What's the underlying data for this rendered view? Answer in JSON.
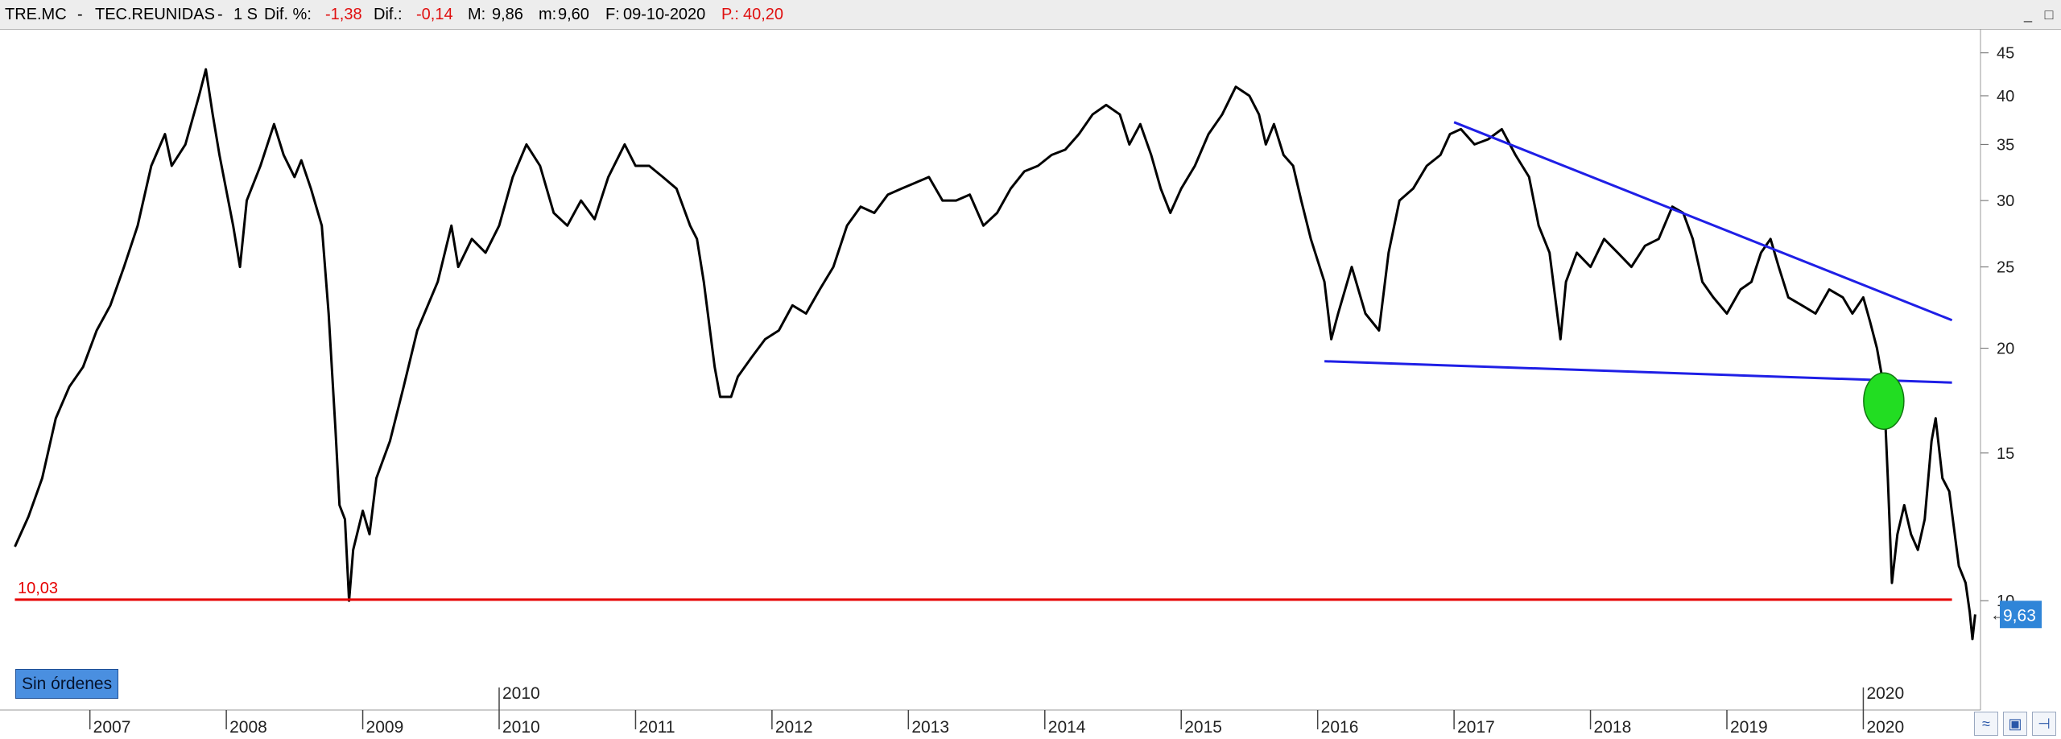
{
  "header": {
    "ticker": "TRE.MC",
    "name": "TEC.REUNIDAS",
    "period": "1 S",
    "dif_pct_label": "Dif. %:",
    "dif_pct": "-1,38",
    "dif_label": "Dif.:",
    "dif": "-0,14",
    "max_label": "M:",
    "max": "9,86",
    "min_label": "m:",
    "min": "9,60",
    "date_label": "F:",
    "date": "09-10-2020",
    "p_label": "P.:",
    "p": "40,20",
    "sep": "-"
  },
  "orders_button": "Sin órdenes",
  "icons": {
    "window": [
      "minimize-icon",
      "restore-icon"
    ],
    "bottom": [
      "zoom-icon",
      "save-icon",
      "pin-icon"
    ]
  },
  "chart_data": {
    "type": "line",
    "y_scale": "log",
    "ylim": [
      8.2,
      47
    ],
    "y_ticks": [
      10,
      15,
      20,
      25,
      30,
      35,
      40,
      45
    ],
    "x_range": [
      2006.4,
      2020.8
    ],
    "x_ticks": [
      "2007",
      "2008",
      "2009",
      "2010",
      "2011",
      "2012",
      "2013",
      "2014",
      "2015",
      "2016",
      "2017",
      "2018",
      "2019",
      "2020"
    ],
    "x_tick_positions": [
      2007,
      2008,
      2009,
      2010,
      2011,
      2012,
      2013,
      2014,
      2015,
      2016,
      2017,
      2018,
      2019,
      2020
    ],
    "upper_year_labels": [
      {
        "text": "2010",
        "x": 2010.0
      },
      {
        "text": "2020",
        "x": 2020.0
      }
    ],
    "grid": false,
    "price_color": "#000000",
    "price_series": [
      [
        2006.45,
        11.6
      ],
      [
        2006.55,
        12.6
      ],
      [
        2006.65,
        14.0
      ],
      [
        2006.75,
        16.5
      ],
      [
        2006.85,
        18.0
      ],
      [
        2006.95,
        19.0
      ],
      [
        2007.05,
        21.0
      ],
      [
        2007.15,
        22.5
      ],
      [
        2007.25,
        25.0
      ],
      [
        2007.35,
        28.0
      ],
      [
        2007.45,
        33.0
      ],
      [
        2007.55,
        36.0
      ],
      [
        2007.6,
        33.0
      ],
      [
        2007.7,
        35.0
      ],
      [
        2007.8,
        40.0
      ],
      [
        2007.85,
        43.0
      ],
      [
        2007.9,
        38.0
      ],
      [
        2007.95,
        34.0
      ],
      [
        2008.05,
        28.0
      ],
      [
        2008.1,
        25.0
      ],
      [
        2008.15,
        30.0
      ],
      [
        2008.25,
        33.0
      ],
      [
        2008.35,
        37.0
      ],
      [
        2008.42,
        34.0
      ],
      [
        2008.5,
        32.0
      ],
      [
        2008.55,
        33.5
      ],
      [
        2008.62,
        31.0
      ],
      [
        2008.7,
        28.0
      ],
      [
        2008.75,
        22.0
      ],
      [
        2008.8,
        16.0
      ],
      [
        2008.83,
        13.0
      ],
      [
        2008.87,
        12.5
      ],
      [
        2008.9,
        10.0
      ],
      [
        2008.93,
        11.5
      ],
      [
        2009.0,
        12.8
      ],
      [
        2009.05,
        12.0
      ],
      [
        2009.1,
        14.0
      ],
      [
        2009.2,
        15.5
      ],
      [
        2009.3,
        18.0
      ],
      [
        2009.4,
        21.0
      ],
      [
        2009.55,
        24.0
      ],
      [
        2009.65,
        28.0
      ],
      [
        2009.7,
        25.0
      ],
      [
        2009.8,
        27.0
      ],
      [
        2009.9,
        26.0
      ],
      [
        2010.0,
        28.0
      ],
      [
        2010.1,
        32.0
      ],
      [
        2010.2,
        35.0
      ],
      [
        2010.3,
        33.0
      ],
      [
        2010.4,
        29.0
      ],
      [
        2010.5,
        28.0
      ],
      [
        2010.6,
        30.0
      ],
      [
        2010.7,
        28.5
      ],
      [
        2010.8,
        32.0
      ],
      [
        2010.92,
        35.0
      ],
      [
        2011.0,
        33.0
      ],
      [
        2011.1,
        33.0
      ],
      [
        2011.2,
        32.0
      ],
      [
        2011.3,
        31.0
      ],
      [
        2011.4,
        28.0
      ],
      [
        2011.45,
        27.0
      ],
      [
        2011.5,
        24.0
      ],
      [
        2011.58,
        19.0
      ],
      [
        2011.62,
        17.5
      ],
      [
        2011.7,
        17.5
      ],
      [
        2011.75,
        18.5
      ],
      [
        2011.85,
        19.5
      ],
      [
        2011.95,
        20.5
      ],
      [
        2012.05,
        21.0
      ],
      [
        2012.15,
        22.5
      ],
      [
        2012.25,
        22.0
      ],
      [
        2012.35,
        23.5
      ],
      [
        2012.45,
        25.0
      ],
      [
        2012.55,
        28.0
      ],
      [
        2012.65,
        29.5
      ],
      [
        2012.75,
        29.0
      ],
      [
        2012.85,
        30.5
      ],
      [
        2012.95,
        31.0
      ],
      [
        2013.05,
        31.5
      ],
      [
        2013.15,
        32.0
      ],
      [
        2013.25,
        30.0
      ],
      [
        2013.35,
        30.0
      ],
      [
        2013.45,
        30.5
      ],
      [
        2013.55,
        28.0
      ],
      [
        2013.65,
        29.0
      ],
      [
        2013.75,
        31.0
      ],
      [
        2013.85,
        32.5
      ],
      [
        2013.95,
        33.0
      ],
      [
        2014.05,
        34.0
      ],
      [
        2014.15,
        34.5
      ],
      [
        2014.25,
        36.0
      ],
      [
        2014.35,
        38.0
      ],
      [
        2014.45,
        39.0
      ],
      [
        2014.55,
        38.0
      ],
      [
        2014.62,
        35.0
      ],
      [
        2014.7,
        37.0
      ],
      [
        2014.78,
        34.0
      ],
      [
        2014.85,
        31.0
      ],
      [
        2014.92,
        29.0
      ],
      [
        2015.0,
        31.0
      ],
      [
        2015.1,
        33.0
      ],
      [
        2015.2,
        36.0
      ],
      [
        2015.3,
        38.0
      ],
      [
        2015.4,
        41.0
      ],
      [
        2015.5,
        40.0
      ],
      [
        2015.57,
        38.0
      ],
      [
        2015.62,
        35.0
      ],
      [
        2015.68,
        37.0
      ],
      [
        2015.75,
        34.0
      ],
      [
        2015.82,
        33.0
      ],
      [
        2015.88,
        30.0
      ],
      [
        2015.95,
        27.0
      ],
      [
        2016.05,
        24.0
      ],
      [
        2016.1,
        20.5
      ],
      [
        2016.15,
        22.0
      ],
      [
        2016.25,
        25.0
      ],
      [
        2016.35,
        22.0
      ],
      [
        2016.45,
        21.0
      ],
      [
        2016.52,
        26.0
      ],
      [
        2016.6,
        30.0
      ],
      [
        2016.7,
        31.0
      ],
      [
        2016.8,
        33.0
      ],
      [
        2016.9,
        34.0
      ],
      [
        2016.97,
        36.0
      ],
      [
        2017.05,
        36.5
      ],
      [
        2017.15,
        35.0
      ],
      [
        2017.25,
        35.5
      ],
      [
        2017.35,
        36.5
      ],
      [
        2017.45,
        34.0
      ],
      [
        2017.55,
        32.0
      ],
      [
        2017.62,
        28.0
      ],
      [
        2017.7,
        26.0
      ],
      [
        2017.78,
        20.5
      ],
      [
        2017.82,
        24.0
      ],
      [
        2017.9,
        26.0
      ],
      [
        2018.0,
        25.0
      ],
      [
        2018.1,
        27.0
      ],
      [
        2018.2,
        26.0
      ],
      [
        2018.3,
        25.0
      ],
      [
        2018.4,
        26.5
      ],
      [
        2018.5,
        27.0
      ],
      [
        2018.6,
        29.5
      ],
      [
        2018.68,
        29.0
      ],
      [
        2018.75,
        27.0
      ],
      [
        2018.82,
        24.0
      ],
      [
        2018.9,
        23.0
      ],
      [
        2019.0,
        22.0
      ],
      [
        2019.1,
        23.5
      ],
      [
        2019.18,
        24.0
      ],
      [
        2019.25,
        26.0
      ],
      [
        2019.32,
        27.0
      ],
      [
        2019.38,
        25.0
      ],
      [
        2019.45,
        23.0
      ],
      [
        2019.55,
        22.5
      ],
      [
        2019.65,
        22.0
      ],
      [
        2019.75,
        23.5
      ],
      [
        2019.85,
        23.0
      ],
      [
        2019.92,
        22.0
      ],
      [
        2020.0,
        23.0
      ],
      [
        2020.05,
        21.5
      ],
      [
        2020.1,
        20.0
      ],
      [
        2020.15,
        18.0
      ],
      [
        2020.18,
        14.0
      ],
      [
        2020.21,
        10.5
      ],
      [
        2020.25,
        12.0
      ],
      [
        2020.3,
        13.0
      ],
      [
        2020.35,
        12.0
      ],
      [
        2020.4,
        11.5
      ],
      [
        2020.45,
        12.5
      ],
      [
        2020.5,
        15.5
      ],
      [
        2020.53,
        16.5
      ],
      [
        2020.58,
        14.0
      ],
      [
        2020.63,
        13.5
      ],
      [
        2020.7,
        11.0
      ],
      [
        2020.75,
        10.5
      ],
      [
        2020.78,
        9.7
      ],
      [
        2020.8,
        9.0
      ],
      [
        2020.82,
        9.63
      ]
    ],
    "trendlines": [
      {
        "name": "upper-trendline",
        "color": "#1f1fe6",
        "points": [
          [
            2017.0,
            37.2
          ],
          [
            2020.65,
            21.6
          ]
        ]
      },
      {
        "name": "lower-trendline",
        "color": "#1f1fe6",
        "points": [
          [
            2016.05,
            19.3
          ],
          [
            2020.65,
            18.2
          ]
        ]
      },
      {
        "name": "support-line",
        "color": "#e60000",
        "points": [
          [
            2006.45,
            10.03
          ],
          [
            2020.65,
            10.03
          ]
        ]
      }
    ],
    "support_label": "10,03",
    "breakout_marker": {
      "x": 2020.15,
      "y": 17.3,
      "color": "#22dd22"
    },
    "last_price_label": "9,63",
    "last_price": 9.63,
    "last_price_color": "#2f85d8",
    "last_price_arrow": "←"
  }
}
